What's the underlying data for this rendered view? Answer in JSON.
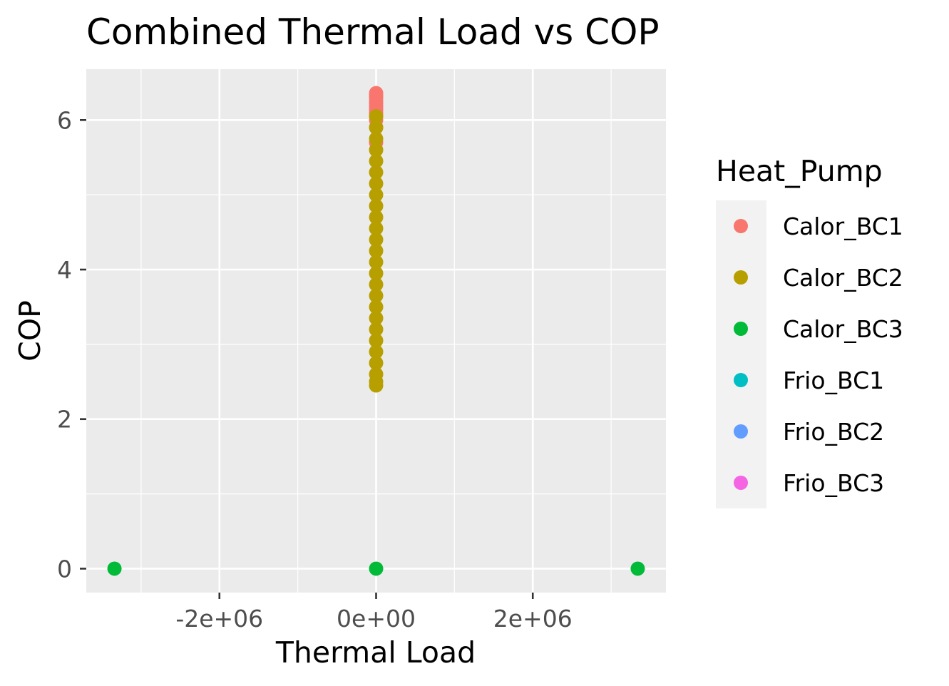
{
  "chart_data": {
    "type": "scatter",
    "title": "Combined Thermal Load vs COP",
    "xlabel": "Thermal Load",
    "ylabel": "COP",
    "xlim": [
      -3700000,
      3700000
    ],
    "ylim": [
      -0.32,
      6.68
    ],
    "x_ticks": [
      {
        "value": -2000000,
        "label": "-2e+06"
      },
      {
        "value": 0,
        "label": "0e+00"
      },
      {
        "value": 2000000,
        "label": "2e+06"
      }
    ],
    "y_ticks": [
      {
        "value": 0,
        "label": "0"
      },
      {
        "value": 2,
        "label": "2"
      },
      {
        "value": 4,
        "label": "4"
      },
      {
        "value": 6,
        "label": "6"
      }
    ],
    "grid": true,
    "panel_background": "#ebebeb",
    "legend": {
      "title": "Heat_Pump",
      "placement": "right"
    },
    "series": [
      {
        "name": "Calor_BC1",
        "color": "#f8766d",
        "points": [
          {
            "x": 0,
            "y": 6.36
          },
          {
            "x": 0,
            "y": 6.33
          },
          {
            "x": 0,
            "y": 6.3
          },
          {
            "x": 0,
            "y": 6.26
          },
          {
            "x": 0,
            "y": 6.22
          },
          {
            "x": 0,
            "y": 6.18
          },
          {
            "x": 0,
            "y": 6.14
          },
          {
            "x": 0,
            "y": 6.1
          },
          {
            "x": 0,
            "y": 6.06
          },
          {
            "x": 0,
            "y": 6.0
          },
          {
            "x": 0,
            "y": 5.9
          },
          {
            "x": 0,
            "y": 5.7
          }
        ]
      },
      {
        "name": "Calor_BC2",
        "color": "#b79f00",
        "points": [
          {
            "x": 0,
            "y": 6.05
          },
          {
            "x": 0,
            "y": 5.9
          },
          {
            "x": 0,
            "y": 5.75
          },
          {
            "x": 0,
            "y": 5.6
          },
          {
            "x": 0,
            "y": 5.45
          },
          {
            "x": 0,
            "y": 5.3
          },
          {
            "x": 0,
            "y": 5.15
          },
          {
            "x": 0,
            "y": 5.0
          },
          {
            "x": 0,
            "y": 4.85
          },
          {
            "x": 0,
            "y": 4.7
          },
          {
            "x": 0,
            "y": 4.55
          },
          {
            "x": 0,
            "y": 4.4
          },
          {
            "x": 0,
            "y": 4.25
          },
          {
            "x": 0,
            "y": 4.1
          },
          {
            "x": 0,
            "y": 3.95
          },
          {
            "x": 0,
            "y": 3.8
          },
          {
            "x": 0,
            "y": 3.65
          },
          {
            "x": 0,
            "y": 3.5
          },
          {
            "x": 0,
            "y": 3.35
          },
          {
            "x": 0,
            "y": 3.2
          },
          {
            "x": 0,
            "y": 3.05
          },
          {
            "x": 0,
            "y": 2.9
          },
          {
            "x": 0,
            "y": 2.75
          },
          {
            "x": 0,
            "y": 2.6
          },
          {
            "x": 0,
            "y": 2.5
          },
          {
            "x": 0,
            "y": 2.45
          }
        ]
      },
      {
        "name": "Calor_BC3",
        "color": "#00ba38",
        "points": [
          {
            "x": -3340000,
            "y": 0
          },
          {
            "x": 0,
            "y": 0
          },
          {
            "x": 3340000,
            "y": 0
          }
        ]
      },
      {
        "name": "Frio_BC1",
        "color": "#00bfc4",
        "points": []
      },
      {
        "name": "Frio_BC2",
        "color": "#619cff",
        "points": []
      },
      {
        "name": "Frio_BC3",
        "color": "#f564e3",
        "points": []
      }
    ]
  }
}
